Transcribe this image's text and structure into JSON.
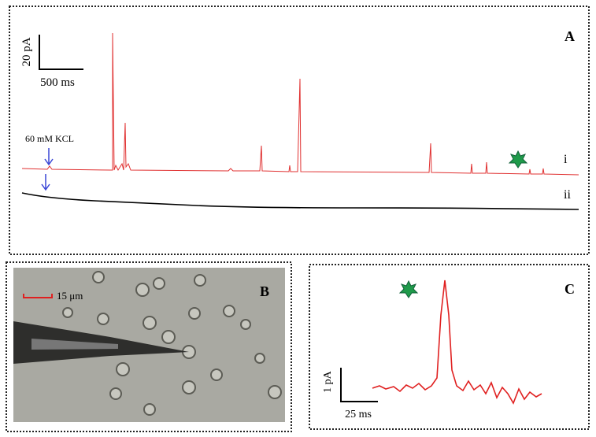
{
  "panels": [
    {
      "label": "A",
      "scale_y": "20 pA",
      "scale_x": "500 ms",
      "annotation": "60 mM KCL",
      "trace_labels": [
        "i",
        "ii"
      ]
    },
    {
      "label": "B",
      "scale": "15 μm"
    },
    {
      "label": "C",
      "scale_y": "1 pA",
      "scale_x": "25 ms"
    }
  ]
}
